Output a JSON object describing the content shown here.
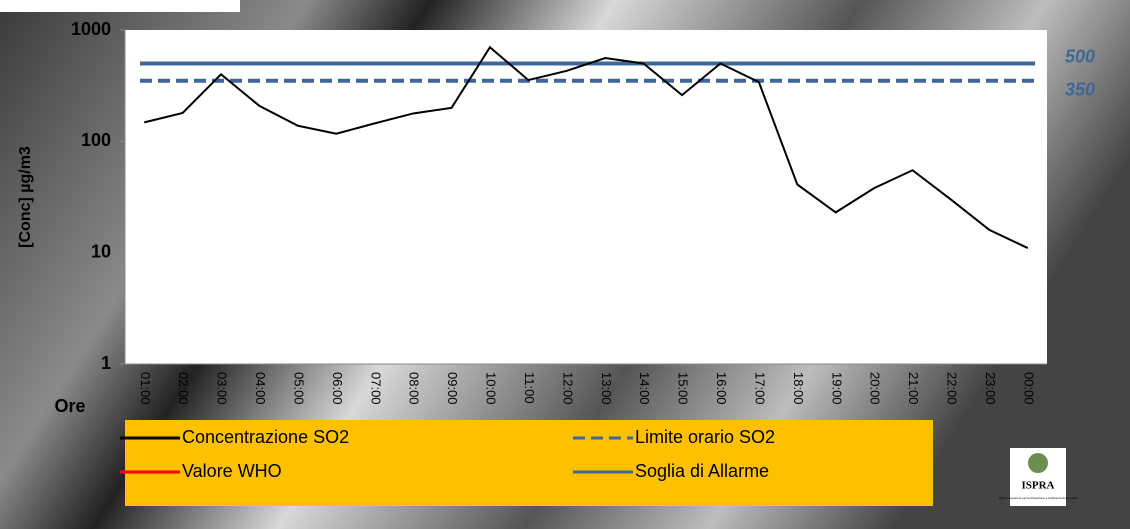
{
  "chart_data": {
    "type": "line",
    "ylabel": "[Conc] µg/m3",
    "xlabel": "Ore",
    "log_y": true,
    "ylim": [
      1,
      1000
    ],
    "yticks": [
      1,
      10,
      100,
      1000
    ],
    "categories": [
      "01:00",
      "02:00",
      "03:00",
      "04:00",
      "05:00",
      "06:00",
      "07:00",
      "08:00",
      "09:00",
      "10:00",
      "11:00",
      "12:00",
      "13:00",
      "14:00",
      "15:00",
      "16:00",
      "17:00",
      "18:00",
      "19:00",
      "20:00",
      "21:00",
      "22:00",
      "23:00",
      "00:00"
    ],
    "series": [
      {
        "name": "Concentrazione SO2",
        "color": "#000000",
        "values": [
          148,
          180,
          400,
          208,
          138,
          117,
          145,
          178,
          200,
          700,
          355,
          430,
          560,
          500,
          260,
          500,
          340,
          41,
          23,
          38,
          55,
          30,
          16,
          11
        ]
      },
      {
        "name": "Valore WHO",
        "color": "#ff0000"
      }
    ],
    "reference_lines": [
      {
        "name": "Limite orario SO2",
        "color": "#3f6797",
        "value": 350,
        "dashed": true
      },
      {
        "name": "Soglia di Allarme",
        "color": "#3f6797",
        "value": 500,
        "dashed": false
      }
    ],
    "logo": {
      "title": "ISPRA",
      "subtitle": "Istituto Superiore per la Protezione e la Ricerca Ambientale"
    }
  }
}
